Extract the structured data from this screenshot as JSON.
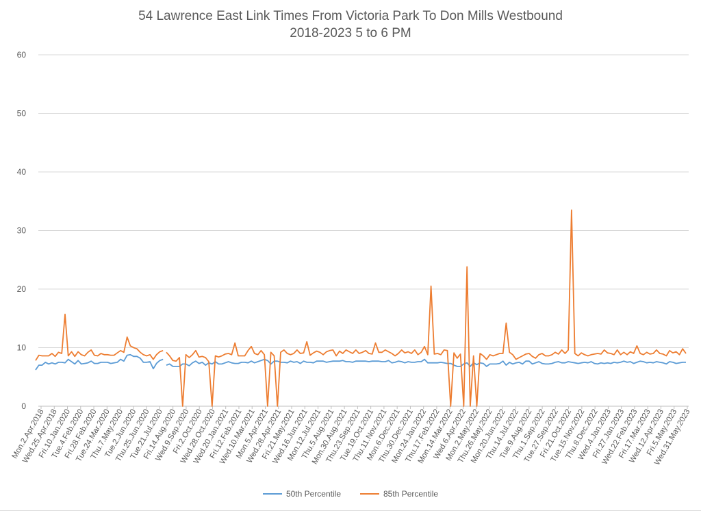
{
  "chart_data": {
    "type": "line",
    "title": "54 Lawrence East Link Times From Victoria Park To Don Mills Westbound",
    "subtitle": "2018-2023 5 to 6 PM",
    "xlabel": "",
    "ylabel": "",
    "ylim": [
      0,
      60
    ],
    "yticks": [
      "0",
      "10",
      "20",
      "30",
      "40",
      "50",
      "60"
    ],
    "grid": true,
    "legend_position": "bottom",
    "x_tick_labels": [
      "Mon.2.Apr.2018",
      "Wed.25.Apr.2018",
      "Fri.10.Jan.2020",
      "Tue.4.Feb.2020",
      "Fri.28.Feb.2020",
      "Tue.24.Mar.2020",
      "Thu.7.May.2020",
      "Tue.2.Jun.2020",
      "Thu.25.Jun.2020",
      "Tue.21.Jul.2020",
      "Fri.14.Aug.2020",
      "Wed.9.Sep.2020",
      "Fri.2.Oct.2020",
      "Wed.28.Oct.2020",
      "Wed.20.Jan.2021",
      "Fri.12.Feb.2021",
      "Wed.10.Mar.2021",
      "Mon.5.Apr.2021",
      "Wed.28.Apr.2021",
      "Fri.21.May.2021",
      "Wed.16.Jun.2021",
      "Mon.12.Jul.2021",
      "Thu.5.Aug.2021",
      "Mon.30.Aug.2021",
      "Thu.23.Sep.2021",
      "Tue.19.Oct.2021",
      "Thu.11.Nov.2021",
      "Mon.6.Dec.2021",
      "Thu.30.Dec.2021",
      "Mon.24.Jan.2022",
      "Thu.17.Feb.2022",
      "Mon.14.Mar.2022",
      "Wed.6.Apr.2022",
      "Mon.2.May.2022",
      "Thu.26.May.2022",
      "Mon.20.Jun.2022",
      "Thu.14.Jul.2022",
      "Tue.9.Aug.2022",
      "Thu.1.Sep.2022",
      "Tue.27.Sep.2022",
      "Fri.21.Oct.2022",
      "Tue.15.Nov.2022",
      "Thu.8.Dec.2022",
      "Wed.4.Jan.2023",
      "Fri.27.Jan.2023",
      "Wed.22.Feb.2023",
      "Fri.17.Mar.2023",
      "Wed.12.Apr.2023",
      "Fri.5.May.2023",
      "Wed.31.May.2023"
    ],
    "series": [
      {
        "name": "50th Percentile",
        "color": "#5b9bd5",
        "values": [
          6.2,
          7.0,
          7.0,
          7.5,
          7.2,
          7.4,
          7.2,
          7.5,
          7.5,
          7.4,
          8.0,
          7.6,
          7.2,
          7.8,
          7.2,
          7.3,
          7.4,
          7.7,
          7.3,
          7.3,
          7.5,
          7.5,
          7.5,
          7.3,
          7.4,
          7.5,
          8.0,
          7.7,
          8.7,
          8.8,
          8.5,
          8.5,
          8.2,
          7.5,
          7.5,
          7.6,
          6.4,
          7.3,
          7.8,
          8.0,
          7.0,
          7.2,
          6.8,
          6.8,
          6.8,
          7.2,
          7.2,
          6.9,
          7.4,
          7.7,
          7.3,
          7.5,
          7.0,
          7.4,
          7.2,
          7.6,
          7.2,
          7.2,
          7.4,
          7.6,
          7.4,
          7.3,
          7.3,
          7.5,
          7.5,
          7.4,
          7.7,
          7.4,
          7.6,
          7.8,
          8.0,
          7.8,
          7.2,
          7.7,
          7.7,
          7.5,
          7.5,
          7.4,
          7.7,
          7.5,
          7.6,
          7.3,
          7.7,
          7.5,
          7.5,
          7.4,
          7.7,
          7.7,
          7.7,
          7.5,
          7.6,
          7.7,
          7.7,
          7.7,
          7.8,
          7.6,
          7.6,
          7.5,
          7.7,
          7.7,
          7.7,
          7.7,
          7.6,
          7.7,
          7.7,
          7.7,
          7.6,
          7.6,
          7.8,
          7.4,
          7.5,
          7.7,
          7.6,
          7.4,
          7.6,
          7.5,
          7.5,
          7.6,
          7.6,
          8.0,
          7.4,
          7.4,
          7.4,
          7.4,
          7.5,
          7.4,
          7.3,
          7.3,
          7.0,
          6.8,
          6.8,
          7.2,
          7.4,
          6.8,
          7.4,
          7.1,
          7.4,
          7.3,
          6.8,
          7.2,
          7.2,
          7.2,
          7.3,
          7.7,
          7.0,
          7.5,
          7.2,
          7.4,
          7.5,
          7.2,
          7.7,
          7.7,
          7.2,
          7.4,
          7.6,
          7.3,
          7.2,
          7.2,
          7.3,
          7.5,
          7.6,
          7.4,
          7.4,
          7.6,
          7.5,
          7.4,
          7.3,
          7.4,
          7.5,
          7.4,
          7.6,
          7.3,
          7.2,
          7.4,
          7.3,
          7.4,
          7.3,
          7.5,
          7.4,
          7.5,
          7.7,
          7.5,
          7.6,
          7.3,
          7.5,
          7.7,
          7.6,
          7.4,
          7.5,
          7.4,
          7.6,
          7.5,
          7.4,
          7.2,
          7.6,
          7.5,
          7.3,
          7.4,
          7.5,
          7.5
        ]
      },
      {
        "name": "85th Percentile",
        "color": "#ed7d31",
        "values": [
          7.8,
          8.7,
          8.6,
          8.6,
          8.6,
          9.0,
          8.5,
          9.2,
          9.0,
          15.7,
          8.6,
          9.3,
          8.5,
          9.3,
          8.8,
          8.6,
          9.2,
          9.6,
          8.7,
          8.6,
          9.0,
          8.8,
          8.8,
          8.7,
          8.7,
          9.1,
          9.5,
          9.2,
          11.8,
          10.3,
          10.0,
          9.8,
          9.2,
          8.8,
          8.6,
          8.8,
          8.0,
          8.8,
          9.3,
          9.5,
          9.2,
          8.6,
          7.8,
          7.7,
          8.3,
          0.0,
          8.8,
          8.3,
          8.8,
          9.5,
          8.4,
          8.5,
          8.3,
          7.6,
          0.0,
          8.6,
          8.4,
          8.6,
          8.9,
          9.0,
          8.8,
          10.8,
          8.6,
          8.6,
          8.6,
          9.5,
          10.2,
          9.0,
          8.8,
          9.5,
          8.8,
          0.0,
          9.2,
          8.6,
          0.0,
          9.2,
          9.6,
          9.0,
          8.8,
          9.0,
          9.6,
          9.0,
          9.1,
          11.0,
          8.7,
          9.1,
          9.4,
          9.2,
          8.8,
          9.3,
          9.5,
          9.6,
          8.6,
          9.4,
          9.0,
          9.6,
          9.3,
          9.0,
          9.6,
          9.0,
          9.2,
          9.5,
          9.0,
          8.9,
          10.8,
          9.2,
          9.2,
          9.6,
          9.3,
          9.0,
          8.6,
          9.0,
          9.6,
          9.1,
          9.3,
          9.0,
          9.6,
          8.8,
          9.2,
          10.2,
          8.8,
          20.5,
          8.9,
          9.0,
          8.8,
          9.6,
          9.5,
          0.0,
          9.1,
          8.2,
          8.9,
          0.0,
          23.8,
          0.0,
          8.6,
          0.0,
          9.0,
          8.6,
          8.0,
          8.8,
          8.6,
          8.8,
          9.0,
          9.0,
          14.2,
          9.2,
          8.8,
          8.0,
          8.3,
          8.6,
          8.9,
          9.0,
          8.5,
          8.2,
          8.8,
          9.0,
          8.6,
          8.6,
          8.8,
          9.2,
          8.9,
          9.6,
          9.0,
          9.6,
          33.5,
          9.0,
          8.6,
          9.1,
          8.8,
          8.6,
          8.8,
          8.9,
          9.0,
          8.9,
          9.6,
          9.1,
          9.0,
          8.8,
          9.6,
          8.8,
          9.2,
          8.8,
          9.3,
          9.0,
          10.3,
          9.0,
          8.8,
          9.2,
          8.9,
          9.0,
          9.6,
          9.0,
          8.9,
          8.6,
          9.5,
          9.1,
          9.3,
          8.8,
          9.8,
          9.0
        ]
      }
    ],
    "gaps_after_index": [
      39
    ]
  }
}
